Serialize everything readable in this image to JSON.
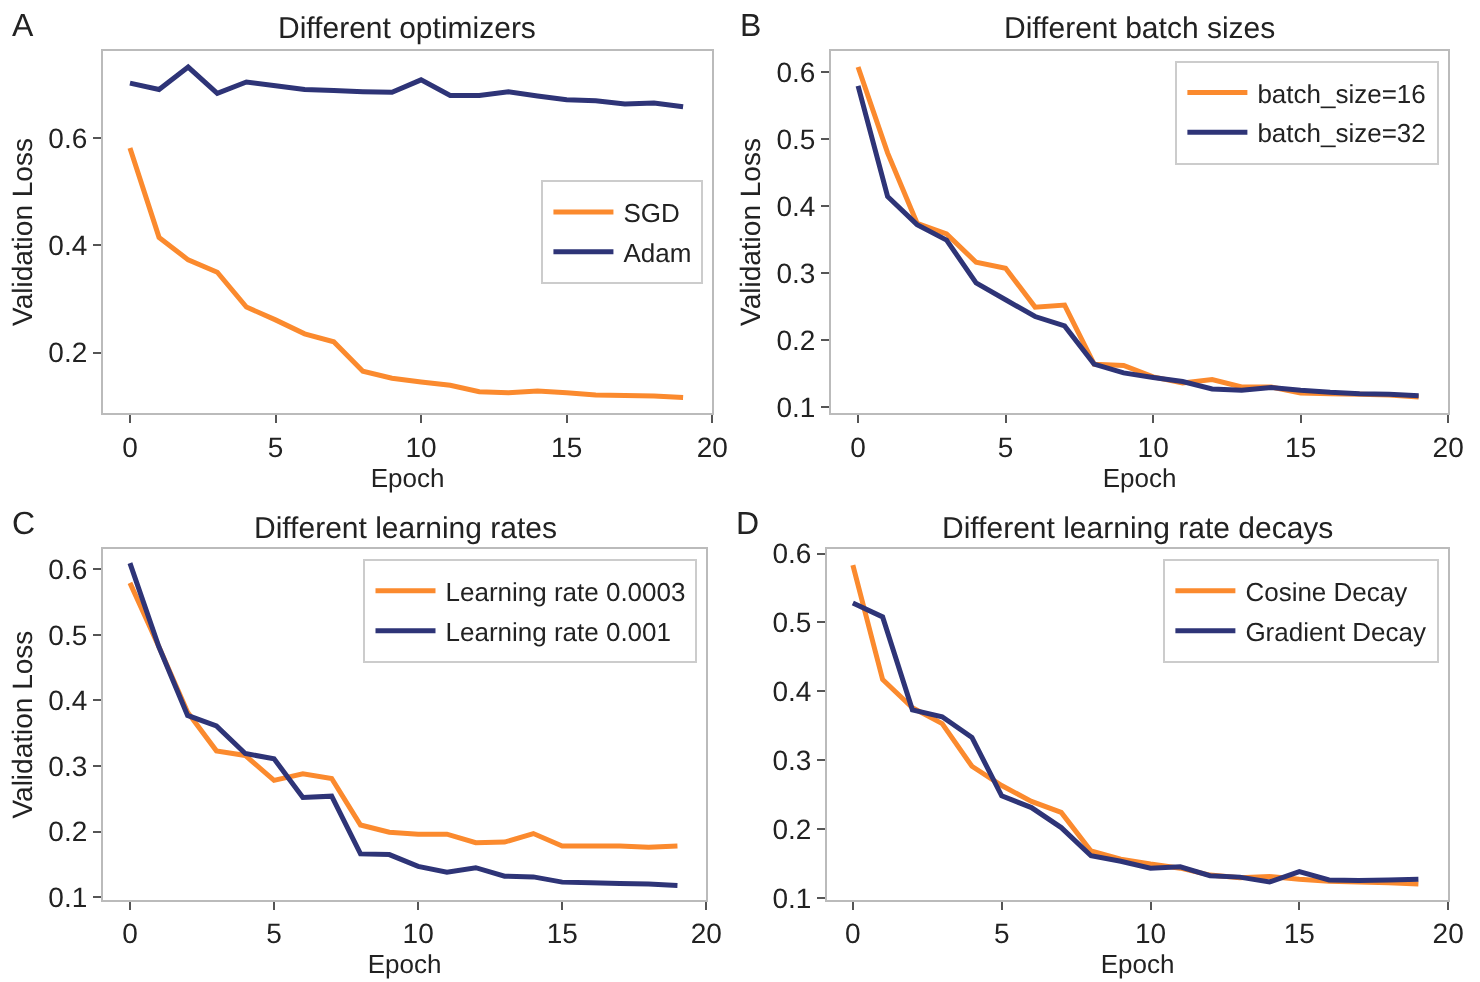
{
  "chart_data": [
    {
      "type": "line",
      "title": "Different optimizers",
      "xlabel": "Epoch",
      "ylabel": "Validation Loss",
      "annotations": [
        "A"
      ],
      "x": [
        0,
        1,
        2,
        3,
        4,
        5,
        6,
        7,
        8,
        9,
        10,
        11,
        12,
        13,
        14,
        15,
        16,
        17,
        18,
        19
      ],
      "xlim": [
        -0.93,
        20
      ],
      "xticks": [
        0,
        5,
        10,
        15,
        20
      ],
      "ylim": [
        0.087,
        0.763
      ],
      "yticks": [
        0.2,
        0.4,
        0.6
      ],
      "legend": "right",
      "marker": "none",
      "line_style": "solid",
      "series": [
        {
          "name": "SGD",
          "color": "#fb8a2e",
          "values": [
            0.582,
            0.415,
            0.373,
            0.35,
            0.285,
            0.261,
            0.235,
            0.22,
            0.165,
            0.152,
            0.145,
            0.139,
            0.127,
            0.125,
            0.128,
            0.125,
            0.121,
            0.12,
            0.119,
            0.116
          ]
        },
        {
          "name": "Adam",
          "color": "#2e3477",
          "values": [
            0.703,
            0.691,
            0.733,
            0.684,
            0.705,
            0.698,
            0.691,
            0.689,
            0.687,
            0.686,
            0.709,
            0.68,
            0.68,
            0.687,
            0.679,
            0.672,
            0.67,
            0.664,
            0.666,
            0.659
          ]
        }
      ]
    },
    {
      "type": "line",
      "title": "Different batch sizes",
      "xlabel": "Epoch",
      "ylabel": "Validation Loss",
      "annotations": [
        "B"
      ],
      "x": [
        0,
        1,
        2,
        3,
        4,
        5,
        6,
        7,
        8,
        9,
        10,
        11,
        12,
        13,
        14,
        15,
        16,
        17,
        18,
        19
      ],
      "xlim": [
        -0.92,
        20
      ],
      "xticks": [
        0,
        5,
        10,
        15,
        20
      ],
      "ylim": [
        0.091,
        0.631
      ],
      "yticks": [
        0.1,
        0.2,
        0.3,
        0.4,
        0.5,
        0.6
      ],
      "legend": "top right",
      "marker": "none",
      "line_style": "solid",
      "series": [
        {
          "name": "batch_size=16",
          "color": "#fb8a2e",
          "values": [
            0.607,
            0.479,
            0.374,
            0.358,
            0.316,
            0.307,
            0.249,
            0.252,
            0.164,
            0.162,
            0.145,
            0.136,
            0.141,
            0.13,
            0.13,
            0.121,
            0.12,
            0.119,
            0.118,
            0.115
          ]
        },
        {
          "name": "batch_size=32",
          "color": "#2e3477",
          "values": [
            0.579,
            0.414,
            0.372,
            0.349,
            0.285,
            0.26,
            0.235,
            0.221,
            0.164,
            0.151,
            0.144,
            0.138,
            0.127,
            0.125,
            0.129,
            0.125,
            0.122,
            0.12,
            0.119,
            0.117
          ]
        }
      ]
    },
    {
      "type": "line",
      "title": "Different learning rates",
      "xlabel": "Epoch",
      "ylabel": "Validation Loss",
      "annotations": [
        "C"
      ],
      "x": [
        0,
        1,
        2,
        3,
        4,
        5,
        6,
        7,
        8,
        9,
        10,
        11,
        12,
        13,
        14,
        15,
        16,
        17,
        18,
        19
      ],
      "xlim": [
        -0.94,
        20
      ],
      "xticks": [
        0,
        5,
        10,
        15,
        20
      ],
      "ylim": [
        0.096,
        0.63
      ],
      "yticks": [
        0.1,
        0.2,
        0.3,
        0.4,
        0.5,
        0.6
      ],
      "legend": "top right",
      "marker": "none",
      "line_style": "solid",
      "series": [
        {
          "name": "Learning rate 0.0003",
          "color": "#fb8a2e",
          "values": [
            0.579,
            0.482,
            0.382,
            0.323,
            0.316,
            0.278,
            0.288,
            0.281,
            0.21,
            0.199,
            0.196,
            0.196,
            0.183,
            0.184,
            0.197,
            0.178,
            0.178,
            0.178,
            0.176,
            0.178
          ]
        },
        {
          "name": "Learning rate 0.001",
          "color": "#2e3477",
          "values": [
            0.609,
            0.482,
            0.377,
            0.361,
            0.319,
            0.311,
            0.252,
            0.254,
            0.166,
            0.165,
            0.147,
            0.138,
            0.145,
            0.132,
            0.131,
            0.123,
            0.122,
            0.121,
            0.12,
            0.118
          ]
        }
      ]
    },
    {
      "type": "line",
      "title": "Different learning rate decays",
      "xlabel": "Epoch",
      "annotations": [
        "D"
      ],
      "x": [
        0,
        1,
        2,
        3,
        4,
        5,
        6,
        7,
        8,
        9,
        10,
        11,
        12,
        13,
        14,
        15,
        16,
        17,
        18,
        19
      ],
      "xlim": [
        -0.87,
        20
      ],
      "xticks": [
        0,
        5,
        10,
        15,
        20
      ],
      "ylim": [
        0.097,
        0.606
      ],
      "yticks": [
        0.1,
        0.2,
        0.3,
        0.4,
        0.5,
        0.6
      ],
      "legend": "top right",
      "marker": "none",
      "line_style": "solid",
      "series": [
        {
          "name": "Cosine Decay",
          "color": "#fb8a2e",
          "values": [
            0.583,
            0.417,
            0.376,
            0.353,
            0.291,
            0.263,
            0.24,
            0.224,
            0.168,
            0.156,
            0.149,
            0.143,
            0.133,
            0.129,
            0.131,
            0.127,
            0.124,
            0.123,
            0.122,
            0.12
          ]
        },
        {
          "name": "Gradient Decay",
          "color": "#2e3477",
          "values": [
            0.528,
            0.508,
            0.373,
            0.363,
            0.333,
            0.248,
            0.231,
            0.202,
            0.161,
            0.153,
            0.143,
            0.145,
            0.132,
            0.13,
            0.123,
            0.138,
            0.126,
            0.125,
            0.126,
            0.127
          ]
        }
      ]
    }
  ]
}
